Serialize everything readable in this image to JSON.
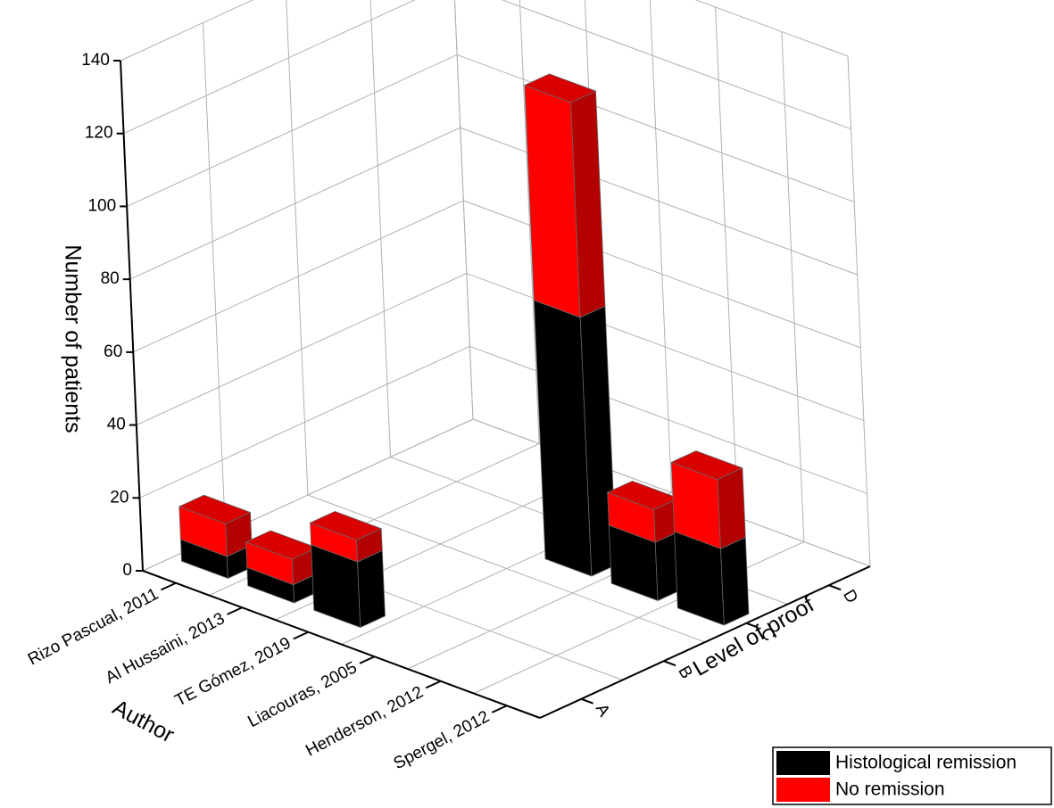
{
  "chart_data": {
    "type": "bar3d",
    "ylabel": "Number of patients",
    "xlabel": "Author",
    "zlabel": "Level of proof",
    "categories": [
      "Rizo Pascual, 2011",
      "Al Hussaini, 2013",
      "TE Gómez, 2019",
      "Liacouras, 2005",
      "Henderson,  2012",
      "Spergel, 2012"
    ],
    "levels": [
      "A",
      "B",
      "C",
      "D"
    ],
    "category_levels": [
      "A",
      "A",
      "A",
      "C",
      "C",
      "C"
    ],
    "series": [
      {
        "name": "Histological remission",
        "color": "#000000",
        "values": [
          6,
          5,
          18,
          71,
          16,
          21
        ]
      },
      {
        "name": "No remission",
        "color": "#ff0000",
        "values": [
          9,
          7,
          6,
          59,
          9,
          19
        ]
      }
    ],
    "ylim": [
      0,
      140
    ],
    "yticks": [
      0,
      20,
      40,
      60,
      80,
      100,
      120,
      140
    ],
    "grid": true
  }
}
